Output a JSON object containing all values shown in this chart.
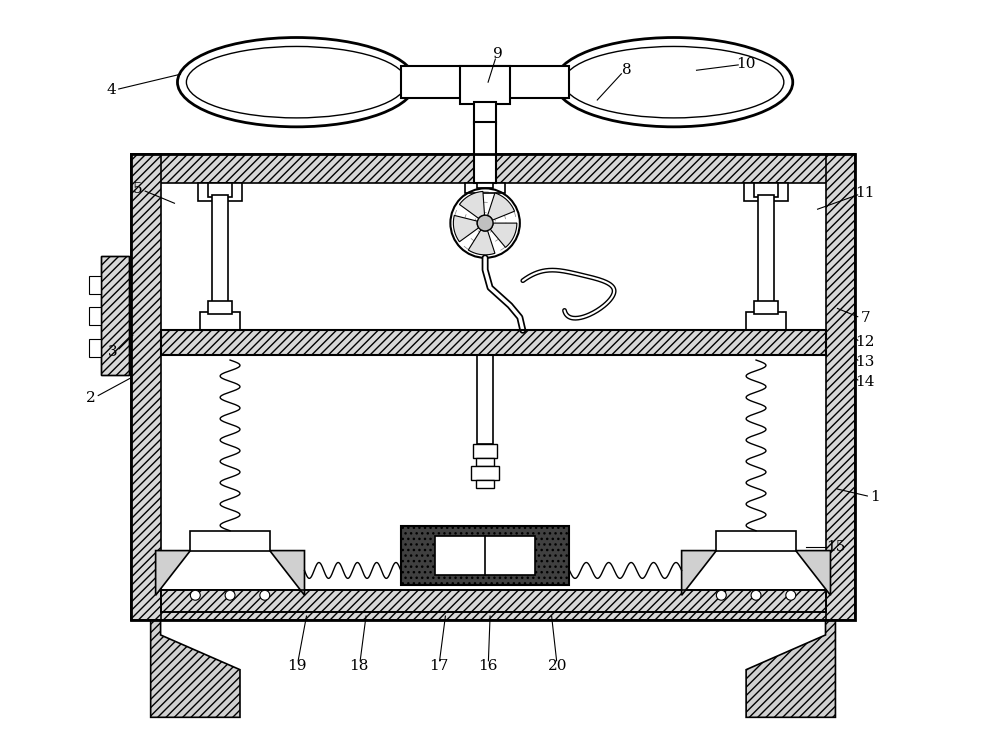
{
  "bg_color": "#ffffff",
  "line_color": "#000000",
  "figsize": [
    10,
    7.33
  ],
  "dpi": 100,
  "labels_pos": {
    "1": [
      878,
      498,
      840,
      490
    ],
    "2": [
      88,
      398,
      128,
      378
    ],
    "3": [
      110,
      352,
      130,
      335
    ],
    "4": [
      108,
      88,
      178,
      72
    ],
    "5": [
      135,
      188,
      172,
      202
    ],
    "7": [
      868,
      318,
      840,
      308
    ],
    "8": [
      628,
      68,
      598,
      98
    ],
    "9": [
      498,
      52,
      488,
      80
    ],
    "10": [
      748,
      62,
      698,
      68
    ],
    "11": [
      868,
      192,
      820,
      208
    ],
    "12": [
      868,
      342,
      858,
      338
    ],
    "13": [
      868,
      362,
      858,
      358
    ],
    "14": [
      868,
      382,
      858,
      378
    ],
    "15": [
      838,
      548,
      808,
      548
    ],
    "16": [
      488,
      668,
      490,
      618
    ],
    "17": [
      438,
      668,
      445,
      618
    ],
    "18": [
      358,
      668,
      365,
      618
    ],
    "19": [
      295,
      668,
      305,
      618
    ],
    "20": [
      558,
      668,
      552,
      618
    ]
  }
}
